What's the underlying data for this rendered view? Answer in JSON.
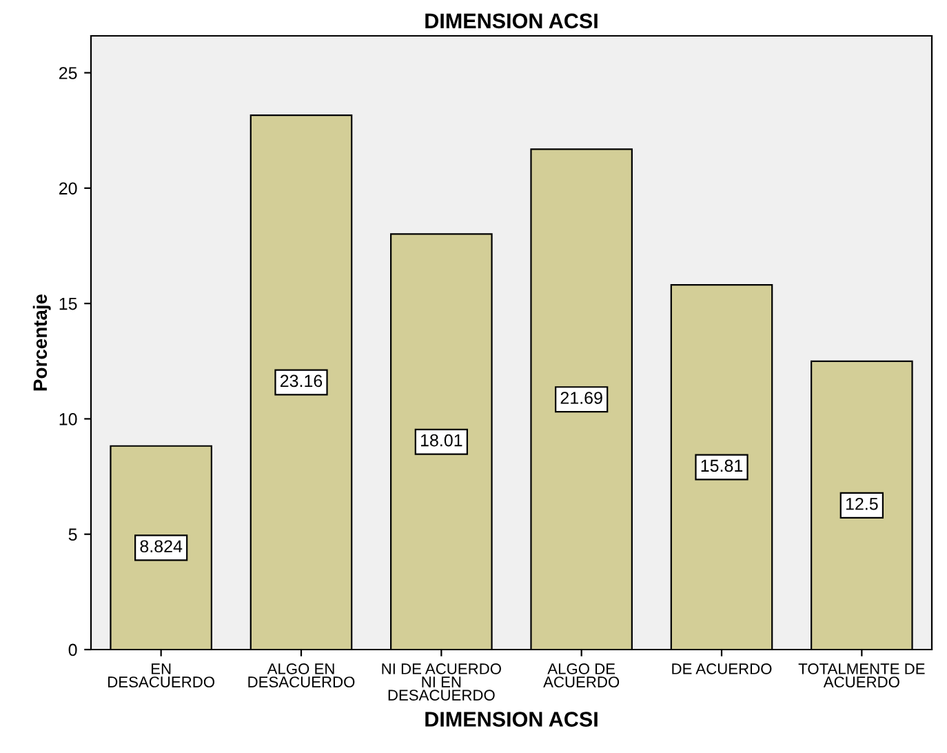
{
  "chart_data": {
    "type": "bar",
    "title": "DIMENSION ACSI",
    "xlabel": "DIMENSION ACSI",
    "ylabel": "Porcentaje",
    "categories": [
      "EN\nDESACUERDO",
      "ALGO EN\nDESACUERDO",
      "NI DE ACUERDO\nNI EN\nDESACUERDO",
      "ALGO DE\nACUERDO",
      "DE ACUERDO",
      "TOTALMENTE DE\nACUERDO"
    ],
    "values": [
      8.824,
      23.16,
      18.01,
      21.69,
      15.81,
      12.5
    ],
    "color": "#d3ce97",
    "ylim": [
      0,
      26.6
    ],
    "yticks": [
      0,
      5,
      10,
      15,
      20,
      25
    ],
    "data_labels": true,
    "grid": false
  }
}
